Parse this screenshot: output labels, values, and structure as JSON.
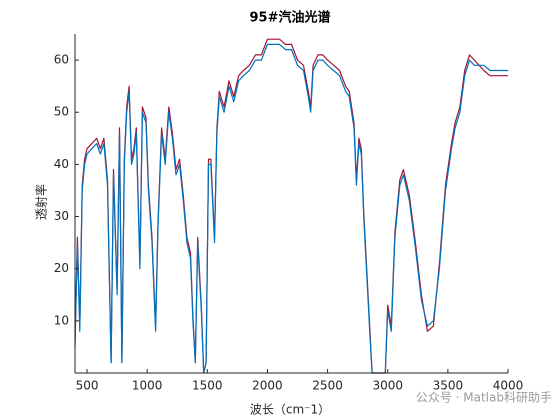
{
  "chart_data": {
    "type": "line",
    "title": "95#汽油光谱",
    "x_label": "波长（cm⁻1）",
    "y_label": "透射率",
    "annotation": "公众号 · Matlab科研助手",
    "xlim": [
      400,
      4000
    ],
    "ylim": [
      0,
      65
    ],
    "xticks": [
      500,
      1000,
      1500,
      2000,
      2500,
      3000,
      3500,
      4000
    ],
    "yticks": [
      10,
      20,
      30,
      40,
      50,
      60
    ],
    "x": [
      400,
      420,
      440,
      460,
      480,
      500,
      540,
      580,
      610,
      640,
      670,
      700,
      720,
      750,
      770,
      790,
      810,
      830,
      850,
      870,
      890,
      910,
      940,
      960,
      990,
      1010,
      1040,
      1070,
      1090,
      1120,
      1150,
      1180,
      1210,
      1240,
      1270,
      1300,
      1330,
      1360,
      1380,
      1400,
      1420,
      1450,
      1470,
      1490,
      1510,
      1530,
      1560,
      1580,
      1600,
      1640,
      1680,
      1720,
      1760,
      1800,
      1850,
      1900,
      1950,
      2000,
      2050,
      2100,
      2150,
      2200,
      2250,
      2300,
      2340,
      2360,
      2380,
      2420,
      2460,
      2500,
      2550,
      2600,
      2650,
      2680,
      2720,
      2740,
      2760,
      2780,
      2800,
      2850,
      2870,
      2950,
      2980,
      3000,
      3030,
      3060,
      3100,
      3130,
      3180,
      3230,
      3280,
      3330,
      3380,
      3430,
      3480,
      3530,
      3560,
      3600,
      3640,
      3680,
      3720,
      3760,
      3800,
      3850,
      3900,
      3950,
      4000
    ],
    "series": [
      {
        "color": "#a2142f",
        "values": [
          6,
          26,
          9,
          36,
          41,
          43,
          44,
          45,
          43,
          45,
          37,
          2,
          39,
          16,
          47,
          2,
          41,
          51,
          55,
          41,
          43,
          47,
          21,
          51,
          49,
          36,
          26,
          9,
          29,
          47,
          41,
          51,
          46,
          39,
          41,
          34,
          26,
          23,
          11,
          2,
          26,
          13,
          0,
          2,
          41,
          41,
          26,
          47,
          54,
          51,
          56,
          53,
          57,
          58,
          59,
          61,
          61,
          64,
          64,
          64,
          63,
          63,
          60,
          59,
          54,
          51,
          59,
          61,
          61,
          60,
          59,
          58,
          55,
          54,
          48,
          37,
          45,
          43,
          31,
          9,
          0,
          0,
          0,
          13,
          9,
          27,
          37,
          39,
          34,
          25,
          15,
          8,
          9,
          21,
          36,
          44,
          48,
          51,
          58,
          61,
          60,
          59,
          58,
          57,
          57,
          57,
          57
        ]
      },
      {
        "color": "#0072bd",
        "values": [
          5,
          25,
          8,
          35,
          40,
          42,
          43,
          44,
          42,
          44,
          36,
          2,
          38,
          15,
          46,
          2,
          40,
          50,
          54,
          40,
          42,
          46,
          20,
          50,
          48,
          35,
          25,
          8,
          28,
          46,
          40,
          50,
          45,
          38,
          40,
          33,
          25,
          22,
          10,
          2,
          25,
          12,
          0,
          2,
          40,
          40,
          25,
          46,
          53,
          50,
          55,
          52,
          56,
          57,
          58,
          60,
          60,
          63,
          63,
          63,
          62,
          62,
          59,
          58,
          53,
          50,
          58,
          60,
          60,
          59,
          58,
          57,
          54,
          53,
          47,
          36,
          44,
          42,
          30,
          8,
          0,
          0,
          0,
          12,
          8,
          26,
          36,
          38,
          33,
          24,
          14,
          9,
          10,
          20,
          35,
          43,
          47,
          50,
          57,
          60,
          59,
          59,
          59,
          58,
          58,
          58,
          58
        ]
      }
    ]
  }
}
